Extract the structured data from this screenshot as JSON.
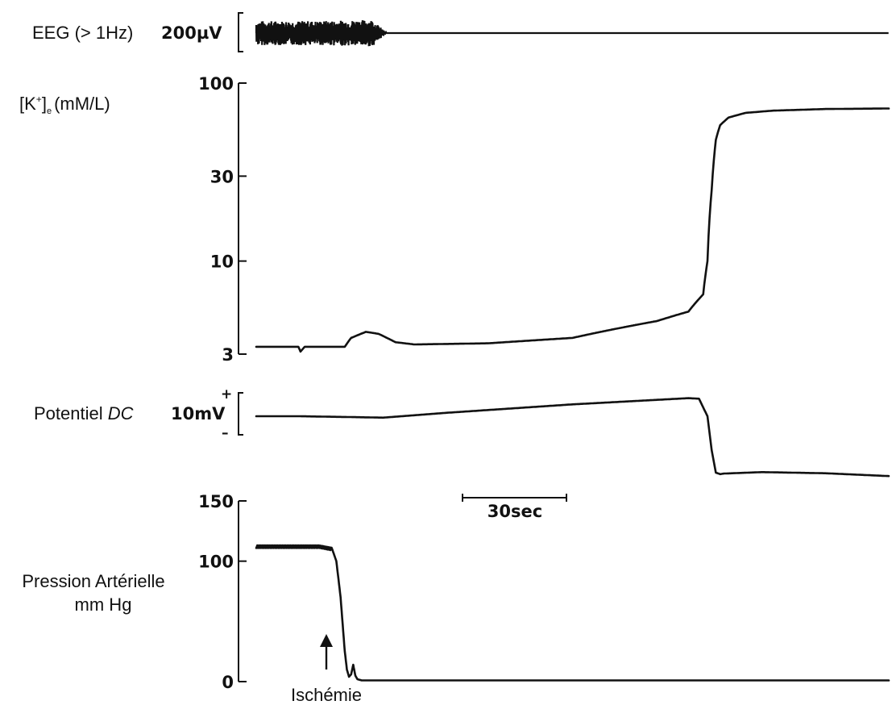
{
  "chart_data": [
    {
      "type": "line",
      "label": "EEG (> 1Hz)",
      "scale_bar": "200µV",
      "x": [
        0,
        30,
        55,
        60,
        62,
        180,
        300
      ],
      "amplitude_uV": [
        200,
        200,
        220,
        60,
        0,
        0,
        0
      ]
    },
    {
      "type": "line",
      "label_main": "[K",
      "label_sup": "+",
      "label_close": "]",
      "label_sub": "e",
      "label_unit": "(mM/L)",
      "scale": "log",
      "yticks": [
        "100",
        "30",
        "10",
        "3"
      ],
      "ytick_values": [
        100,
        30,
        10,
        3
      ],
      "ylim": [
        3,
        100
      ],
      "x": [
        0,
        20,
        21,
        23,
        42,
        45,
        52,
        58,
        66,
        75,
        110,
        150,
        190,
        205,
        212,
        214,
        216,
        218,
        220,
        224,
        232,
        245,
        270,
        300
      ],
      "y": [
        3.3,
        3.3,
        3.1,
        3.3,
        3.3,
        3.7,
        4.0,
        3.9,
        3.5,
        3.4,
        3.45,
        3.7,
        4.6,
        5.2,
        6.5,
        10.0,
        25.0,
        48.0,
        58.0,
        64.0,
        68.0,
        70.0,
        71.5,
        72.0
      ]
    },
    {
      "type": "line",
      "label_main": "Potentiel ",
      "label_italic": "DC",
      "scale_bar": "10mV",
      "scale_plus": "+",
      "scale_minus": "–",
      "x": [
        0,
        20,
        45,
        60,
        90,
        150,
        205,
        210,
        214,
        216,
        218,
        220,
        222,
        240,
        270,
        300
      ],
      "y_mV": [
        0,
        0,
        -0.3,
        -0.5,
        1.2,
        4.2,
        6.4,
        6.2,
        0,
        -12,
        -20,
        -20.5,
        -20.3,
        -19.8,
        -20.2,
        -21.2
      ]
    },
    {
      "type": "line",
      "label_line1": "Pression Artérielle",
      "label_line2": "mm Hg",
      "yticks": [
        "150",
        "100",
        "0"
      ],
      "ytick_values": [
        150,
        100,
        0
      ],
      "ylim": [
        0,
        150
      ],
      "x": [
        0,
        10,
        20,
        30,
        36,
        38,
        40,
        42,
        43,
        44,
        45,
        46,
        47,
        48,
        50,
        55,
        100,
        200,
        300
      ],
      "y": [
        112,
        112,
        112,
        112,
        110,
        100,
        70,
        25,
        10,
        4,
        6,
        14,
        5,
        2,
        1,
        1,
        1,
        1,
        1
      ]
    }
  ],
  "time_scale": "30sec",
  "event_marker": "Ischémie",
  "colors": {
    "ink": "#111111",
    "background": "#ffffff"
  }
}
